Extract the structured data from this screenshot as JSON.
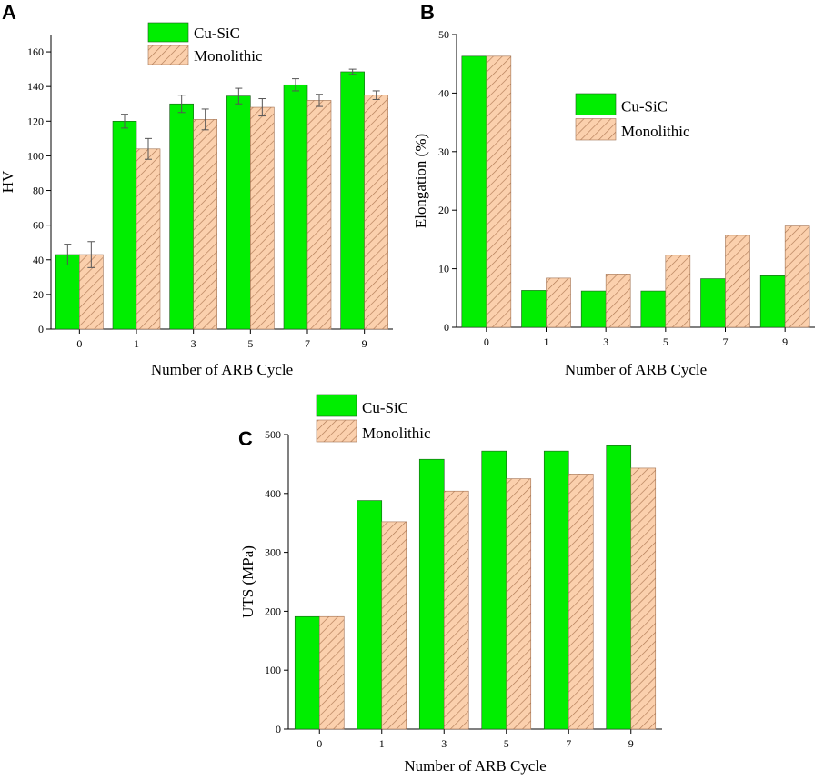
{
  "colors": {
    "cu_sic": "#00ee00",
    "cu_sic_stroke": "#1a5a1a",
    "monolithic": "#fbd0ad",
    "monolithic_hatch": "#b07a55",
    "monolithic_stroke": "#a07050",
    "axis": "#000000"
  },
  "chart_data": [
    {
      "panel": "A",
      "type": "bar",
      "xlabel": "Number of ARB Cycle",
      "ylabel": "HV",
      "categories": [
        "0",
        "1",
        "3",
        "5",
        "7",
        "9"
      ],
      "ylim": [
        0,
        170
      ],
      "yticks": [
        "0",
        "20",
        "40",
        "60",
        "80",
        "100",
        "120",
        "140",
        "160"
      ],
      "legend_position": "top-left",
      "error_bars": true,
      "series": [
        {
          "name": "Cu-SiC",
          "values": [
            43,
            120,
            130,
            134.5,
            141,
            148.5
          ],
          "errors": [
            6,
            4,
            5,
            4.5,
            3.5,
            1.5
          ]
        },
        {
          "name": "Monolithic",
          "values": [
            43,
            104,
            121,
            128,
            132,
            135
          ],
          "errors": [
            7.5,
            6,
            6,
            5,
            3.5,
            2.5
          ]
        }
      ]
    },
    {
      "panel": "B",
      "type": "bar",
      "xlabel": "Number of ARB Cycle",
      "ylabel": "Elongation (%)",
      "categories": [
        "0",
        "1",
        "3",
        "5",
        "7",
        "9"
      ],
      "ylim": [
        0,
        50
      ],
      "yticks": [
        "0",
        "10",
        "20",
        "30",
        "40",
        "50"
      ],
      "legend_position": "center-right",
      "error_bars": false,
      "series": [
        {
          "name": "Cu-SiC",
          "values": [
            46.3,
            6.3,
            6.2,
            6.2,
            8.3,
            8.8
          ]
        },
        {
          "name": "Monolithic",
          "values": [
            46.3,
            8.4,
            9.1,
            12.3,
            15.7,
            17.3
          ]
        }
      ]
    },
    {
      "panel": "C",
      "type": "bar",
      "xlabel": "Number of ARB Cycle",
      "ylabel": "UTS (MPa)",
      "categories": [
        "0",
        "1",
        "3",
        "5",
        "7",
        "9"
      ],
      "ylim": [
        0,
        500
      ],
      "yticks": [
        "0",
        "100",
        "200",
        "300",
        "400",
        "500"
      ],
      "legend_position": "top-left",
      "error_bars": false,
      "series": [
        {
          "name": "Cu-SiC",
          "values": [
            191,
            388,
            458,
            472,
            472,
            481
          ]
        },
        {
          "name": "Monolithic",
          "values": [
            191,
            352,
            404,
            425,
            433,
            443
          ]
        }
      ]
    }
  ]
}
